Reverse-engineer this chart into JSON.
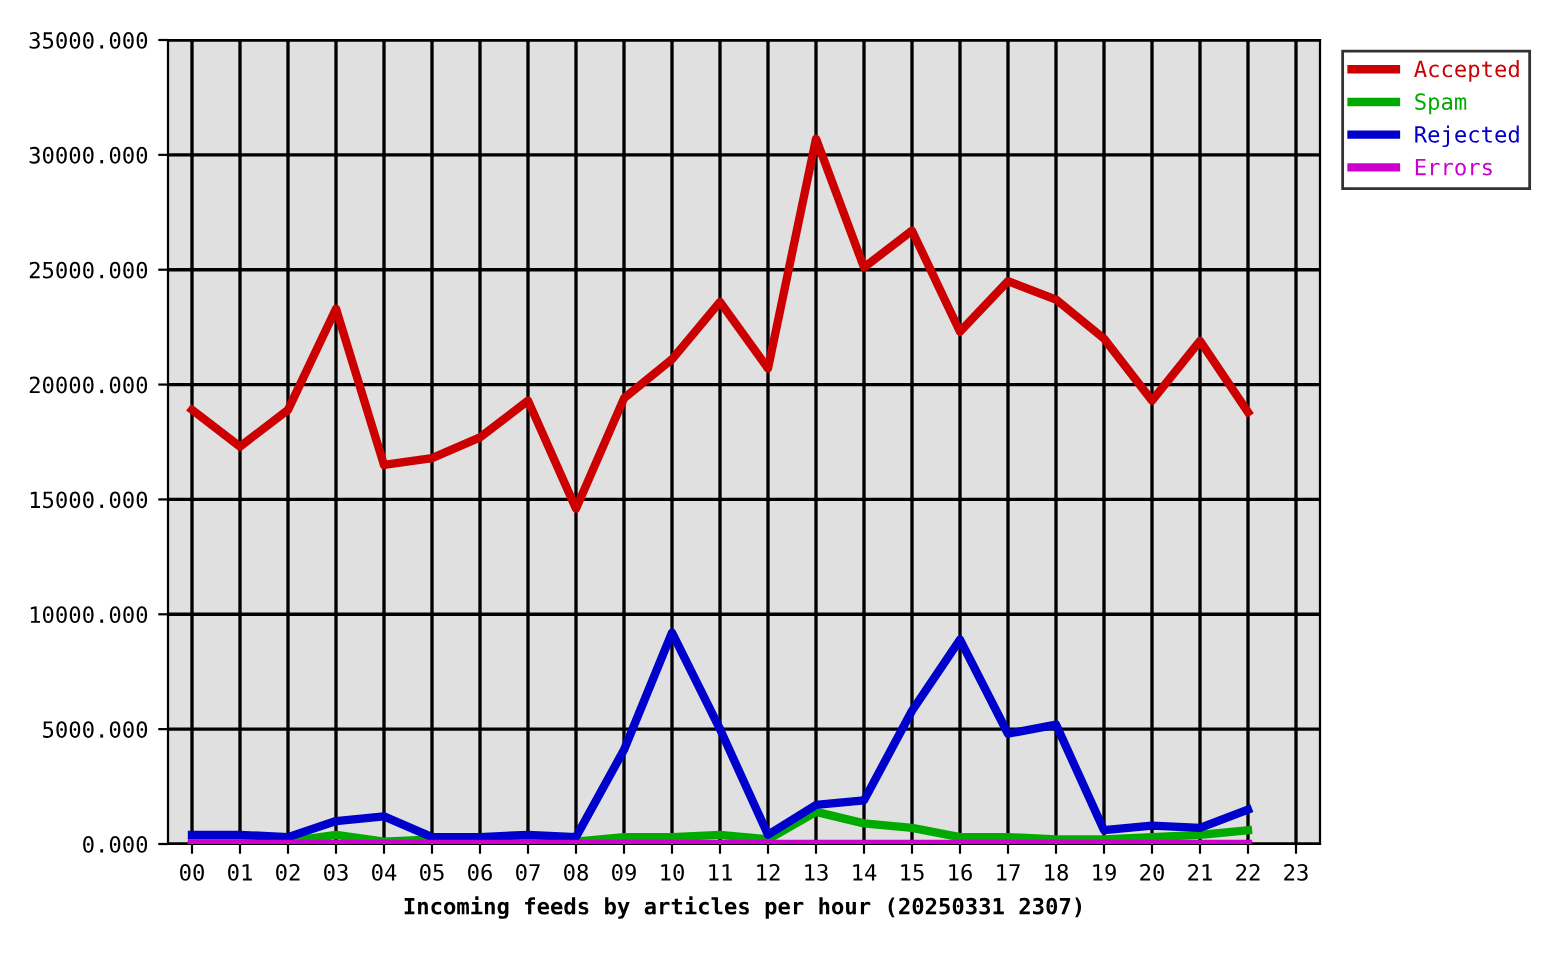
{
  "chart_data": {
    "type": "line",
    "xlabel": "Incoming feeds by articles per hour (20250331 2307)",
    "categories": [
      "00",
      "01",
      "02",
      "03",
      "04",
      "05",
      "06",
      "07",
      "08",
      "09",
      "10",
      "11",
      "12",
      "13",
      "14",
      "15",
      "16",
      "17",
      "18",
      "19",
      "20",
      "21",
      "22",
      "23"
    ],
    "series": [
      {
        "name": "Accepted",
        "color": "#cc0000",
        "values": [
          18900,
          17300,
          18900,
          23300,
          16500,
          16800,
          17700,
          19300,
          14600,
          19400,
          21100,
          23600,
          20700,
          30700,
          25100,
          26700,
          22300,
          24500,
          23700,
          22000,
          19300,
          21900,
          18800,
          null
        ]
      },
      {
        "name": "Spam",
        "color": "#00aa00",
        "values": [
          100,
          100,
          100,
          400,
          100,
          200,
          200,
          200,
          100,
          300,
          300,
          400,
          200,
          1400,
          900,
          700,
          300,
          300,
          200,
          200,
          300,
          400,
          600,
          null
        ]
      },
      {
        "name": "Rejected",
        "color": "#0000cc",
        "values": [
          400,
          400,
          300,
          1000,
          1200,
          300,
          300,
          400,
          300,
          4100,
          9200,
          5000,
          400,
          1700,
          1900,
          5800,
          8900,
          4800,
          5200,
          600,
          800,
          700,
          1500,
          null
        ]
      },
      {
        "name": "Errors",
        "color": "#cc00cc",
        "values": [
          0,
          0,
          0,
          0,
          0,
          0,
          0,
          0,
          0,
          0,
          0,
          0,
          0,
          0,
          0,
          0,
          0,
          0,
          0,
          0,
          0,
          0,
          0,
          null
        ]
      }
    ],
    "ylim": [
      0,
      35000
    ],
    "yticks": [
      {
        "value": 0,
        "label": "0.000"
      },
      {
        "value": 5000,
        "label": "5000.000"
      },
      {
        "value": 10000,
        "label": "10000.000"
      },
      {
        "value": 15000,
        "label": "15000.000"
      },
      {
        "value": 20000,
        "label": "20000.000"
      },
      {
        "value": 25000,
        "label": "25000.000"
      },
      {
        "value": 30000,
        "label": "30000.000"
      },
      {
        "value": 35000,
        "label": "35000.000"
      }
    ],
    "grid": true,
    "legend": "top right"
  }
}
